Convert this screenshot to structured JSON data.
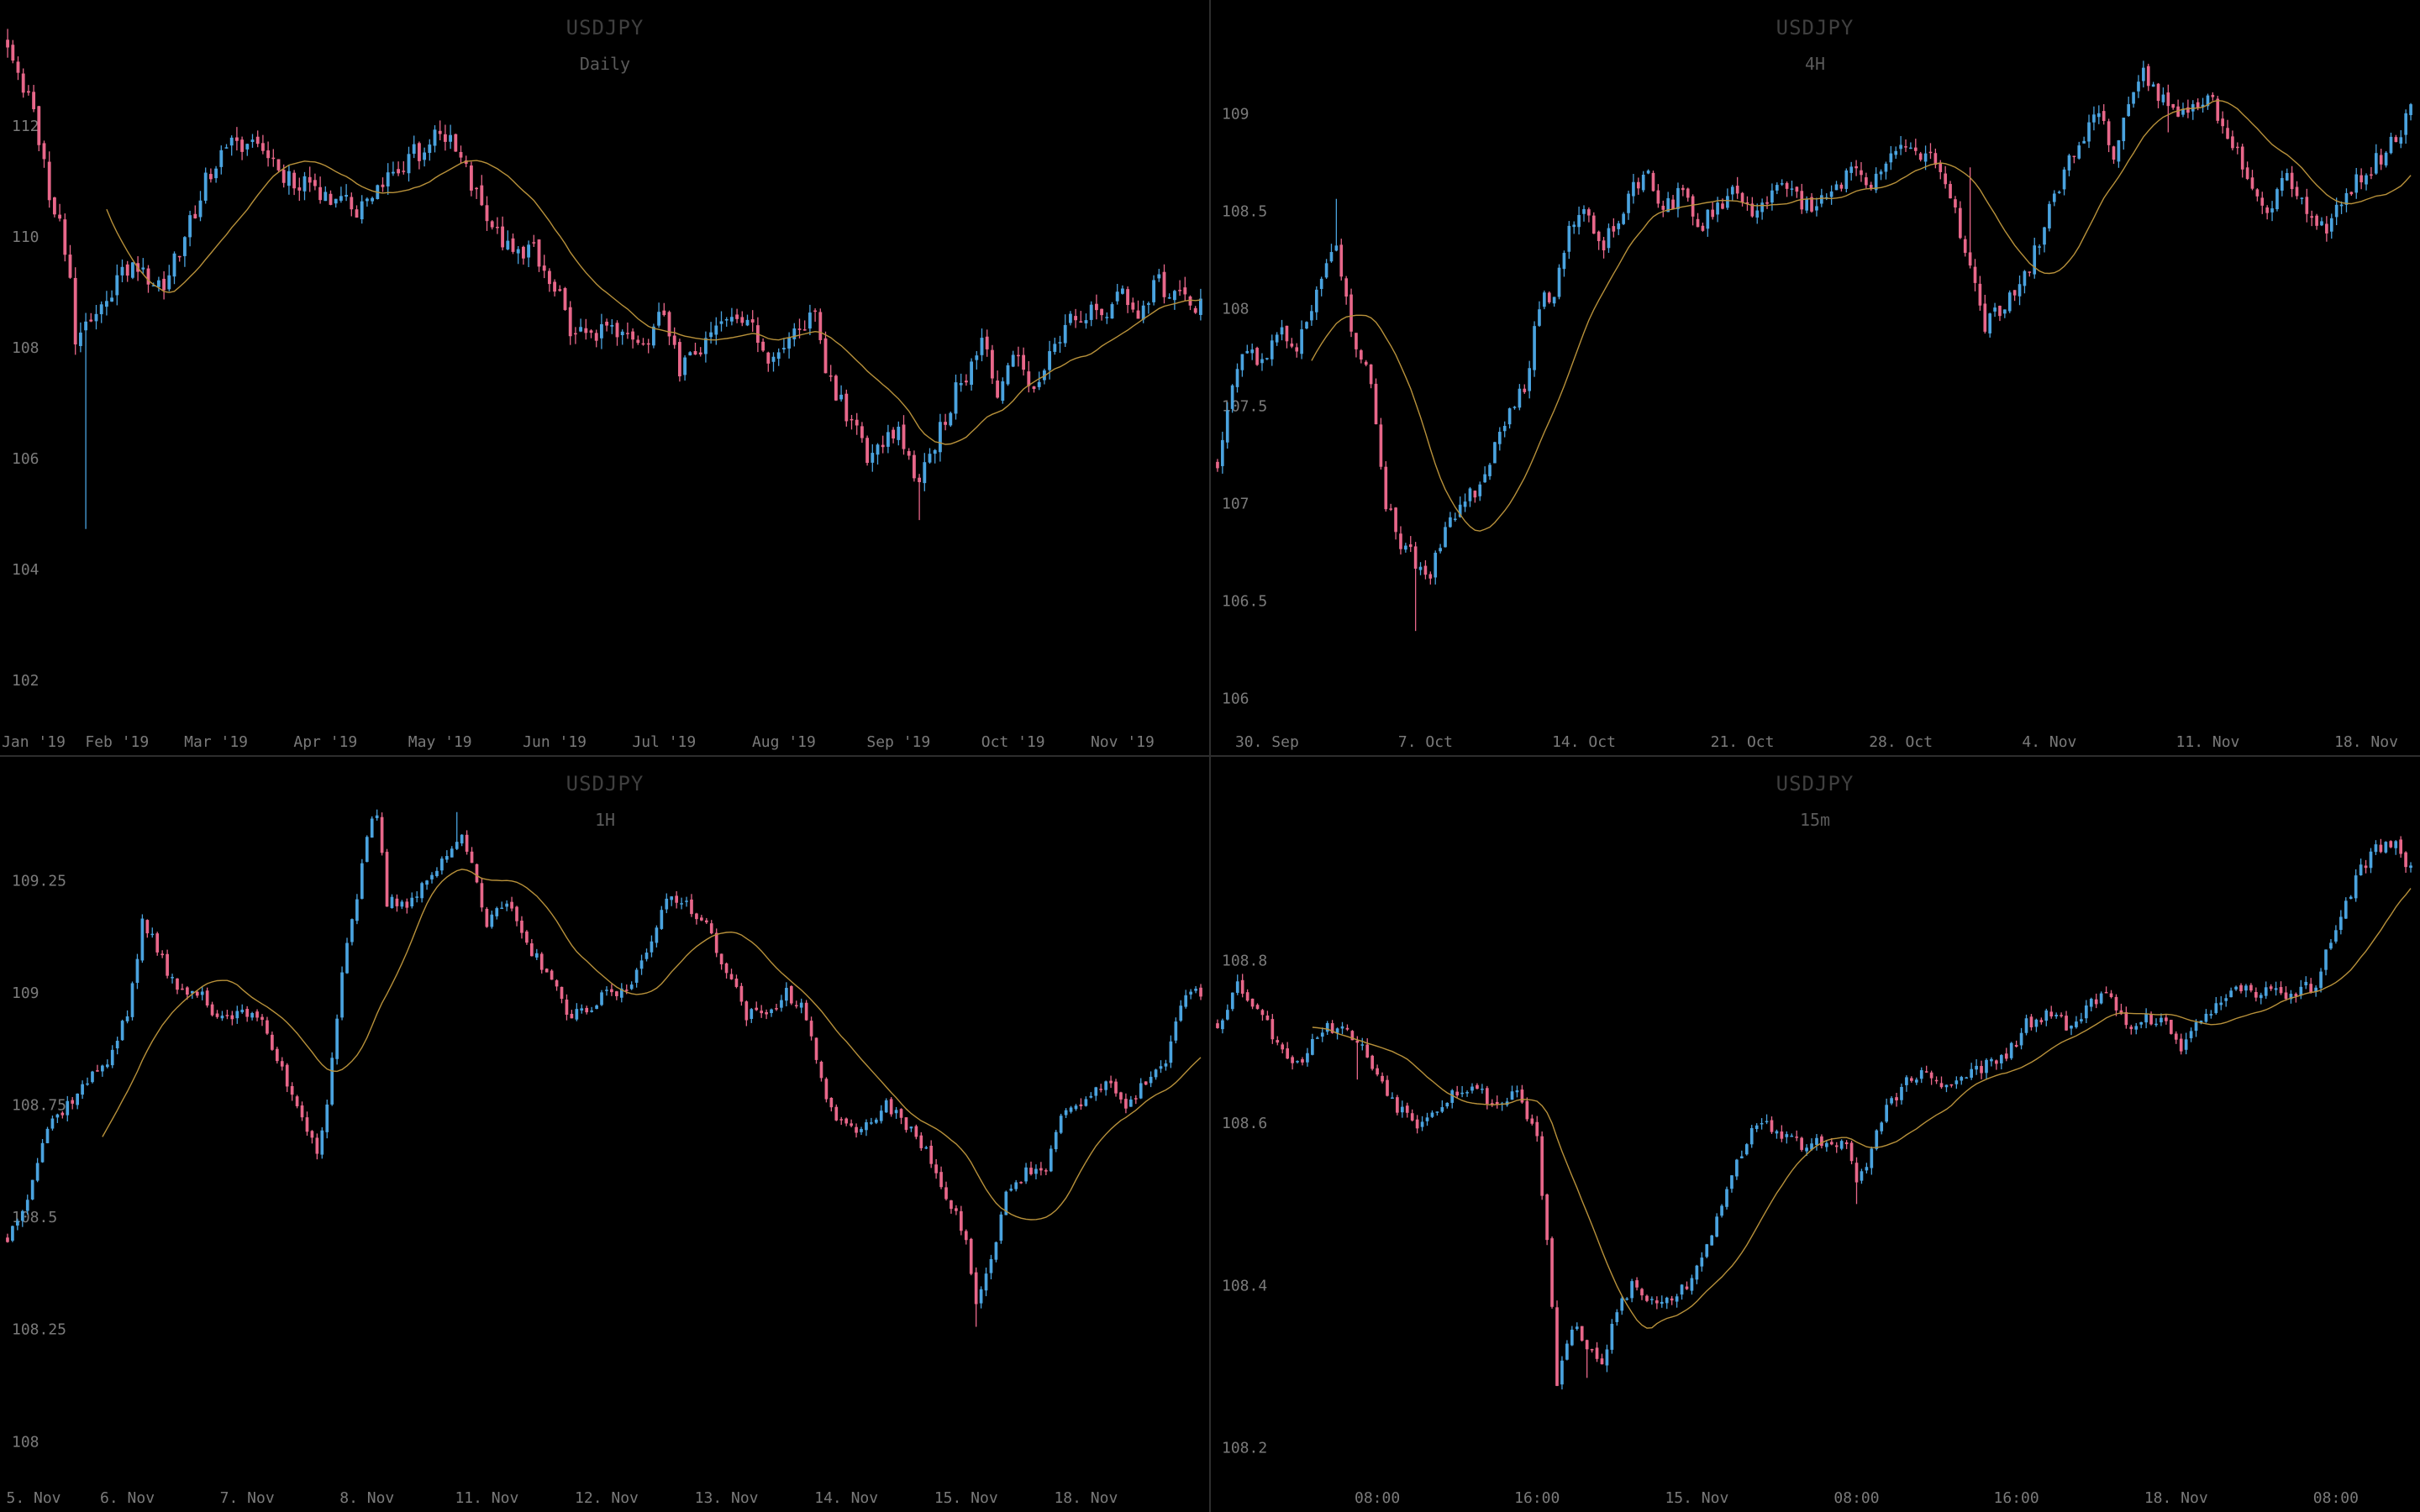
{
  "theme": {
    "background": "#000000",
    "up_color": "#4aa3df",
    "down_color": "#e8678a",
    "ma_color": "#b8913a",
    "text_color": "#7a7a7a",
    "title_color": "#3f3f3f"
  },
  "chart_data": [
    {
      "type": "candlestick",
      "title": "USDJPY",
      "subtitle": "Daily",
      "y_ticks": [
        "112",
        "110",
        "108",
        "106",
        "104",
        "102"
      ],
      "ylim": [
        101.5,
        113.8
      ],
      "x_ticks": [
        "Jan '19",
        "Feb '19",
        "Mar '19",
        "Apr '19",
        "May '19",
        "Jun '19",
        "Jul '19",
        "Aug '19",
        "Sep '19",
        "Oct '19",
        "Nov '19"
      ],
      "x_tick_index": [
        0,
        21,
        40,
        61,
        83,
        105,
        126,
        149,
        171,
        193,
        214
      ],
      "n_candles": 230,
      "ma_start_index": 19,
      "close_anchors": [
        [
          0,
          113.5
        ],
        [
          2,
          113.0
        ],
        [
          4,
          112.5
        ],
        [
          6,
          111.8
        ],
        [
          8,
          110.8
        ],
        [
          10,
          110.2
        ],
        [
          12,
          109.3
        ],
        [
          13,
          108.1
        ],
        [
          15,
          108.4
        ],
        [
          18,
          108.7
        ],
        [
          21,
          109.2
        ],
        [
          24,
          109.6
        ],
        [
          27,
          109.3
        ],
        [
          30,
          108.9
        ],
        [
          33,
          109.8
        ],
        [
          36,
          110.5
        ],
        [
          38,
          111.0
        ],
        [
          40,
          111.3
        ],
        [
          43,
          111.6
        ],
        [
          47,
          111.7
        ],
        [
          50,
          111.5
        ],
        [
          52,
          111.2
        ],
        [
          55,
          111.0
        ],
        [
          58,
          111.0
        ],
        [
          61,
          110.6
        ],
        [
          64,
          110.9
        ],
        [
          67,
          110.4
        ],
        [
          70,
          110.8
        ],
        [
          74,
          111.2
        ],
        [
          77,
          111.4
        ],
        [
          80,
          111.6
        ],
        [
          83,
          111.9
        ],
        [
          86,
          111.5
        ],
        [
          89,
          111.0
        ],
        [
          92,
          110.4
        ],
        [
          95,
          109.8
        ],
        [
          98,
          109.6
        ],
        [
          101,
          109.9
        ],
        [
          103,
          109.3
        ],
        [
          106,
          109.0
        ],
        [
          108,
          108.2
        ],
        [
          111,
          108.2
        ],
        [
          114,
          108.3
        ],
        [
          117,
          108.3
        ],
        [
          120,
          108.3
        ],
        [
          123,
          108.2
        ],
        [
          126,
          108.6
        ],
        [
          129,
          107.5
        ],
        [
          131,
          107.8
        ],
        [
          134,
          108.1
        ],
        [
          137,
          108.6
        ],
        [
          140,
          108.5
        ],
        [
          143,
          108.4
        ],
        [
          146,
          107.7
        ],
        [
          149,
          107.9
        ],
        [
          152,
          108.4
        ],
        [
          155,
          108.6
        ],
        [
          157,
          107.6
        ],
        [
          160,
          107.0
        ],
        [
          163,
          106.4
        ],
        [
          166,
          105.9
        ],
        [
          169,
          106.5
        ],
        [
          172,
          106.3
        ],
        [
          175,
          105.5
        ],
        [
          178,
          106.3
        ],
        [
          181,
          107.0
        ],
        [
          184,
          107.5
        ],
        [
          187,
          108.3
        ],
        [
          190,
          107.2
        ],
        [
          193,
          108.0
        ],
        [
          196,
          107.3
        ],
        [
          199,
          107.5
        ],
        [
          202,
          108.2
        ],
        [
          205,
          108.6
        ],
        [
          208,
          108.7
        ],
        [
          211,
          108.5
        ],
        [
          214,
          109.0
        ],
        [
          217,
          108.4
        ],
        [
          220,
          109.2
        ],
        [
          223,
          109.0
        ],
        [
          226,
          108.8
        ],
        [
          229,
          108.8
        ]
      ],
      "spikes": [
        [
          15,
          -3.5,
          0
        ],
        [
          175,
          -0.6,
          0
        ]
      ],
      "volatility": 0.28,
      "seed": 11
    },
    {
      "type": "candlestick",
      "title": "USDJPY",
      "subtitle": "4H",
      "y_ticks": [
        "109",
        "108.5",
        "108",
        "107.5",
        "107",
        "106.5",
        "106"
      ],
      "ylim": [
        105.95,
        109.45
      ],
      "x_ticks": [
        "30. Sep",
        "7. Oct",
        "14. Oct",
        "21. Oct",
        "28. Oct",
        "4. Nov",
        "11. Nov",
        "18. Nov"
      ],
      "x_tick_index": [
        10,
        42,
        74,
        106,
        138,
        168,
        200,
        232
      ],
      "n_candles": 242,
      "ma_start_index": 19,
      "close_anchors": [
        [
          0,
          107.2
        ],
        [
          3,
          107.6
        ],
        [
          6,
          107.8
        ],
        [
          9,
          107.7
        ],
        [
          12,
          107.9
        ],
        [
          16,
          107.8
        ],
        [
          20,
          108.1
        ],
        [
          24,
          108.3
        ],
        [
          27,
          107.9
        ],
        [
          31,
          107.6
        ],
        [
          34,
          107.0
        ],
        [
          37,
          106.8
        ],
        [
          40,
          106.7
        ],
        [
          43,
          106.6
        ],
        [
          46,
          106.9
        ],
        [
          50,
          107.0
        ],
        [
          53,
          107.1
        ],
        [
          56,
          107.3
        ],
        [
          59,
          107.5
        ],
        [
          62,
          107.6
        ],
        [
          65,
          108.0
        ],
        [
          68,
          108.1
        ],
        [
          71,
          108.4
        ],
        [
          74,
          108.5
        ],
        [
          77,
          108.3
        ],
        [
          80,
          108.4
        ],
        [
          84,
          108.6
        ],
        [
          87,
          108.7
        ],
        [
          90,
          108.5
        ],
        [
          94,
          108.6
        ],
        [
          97,
          108.4
        ],
        [
          100,
          108.5
        ],
        [
          104,
          108.6
        ],
        [
          108,
          108.5
        ],
        [
          112,
          108.6
        ],
        [
          116,
          108.6
        ],
        [
          120,
          108.5
        ],
        [
          124,
          108.6
        ],
        [
          128,
          108.7
        ],
        [
          132,
          108.6
        ],
        [
          136,
          108.8
        ],
        [
          140,
          108.8
        ],
        [
          144,
          108.8
        ],
        [
          148,
          108.6
        ],
        [
          152,
          108.2
        ],
        [
          155,
          107.9
        ],
        [
          158,
          108.0
        ],
        [
          161,
          108.1
        ],
        [
          164,
          108.2
        ],
        [
          168,
          108.5
        ],
        [
          171,
          108.7
        ],
        [
          175,
          108.9
        ],
        [
          178,
          109.0
        ],
        [
          181,
          108.8
        ],
        [
          184,
          109.0
        ],
        [
          187,
          109.2
        ],
        [
          190,
          109.1
        ],
        [
          193,
          109.0
        ],
        [
          196,
          109.0
        ],
        [
          200,
          109.1
        ],
        [
          204,
          108.9
        ],
        [
          208,
          108.7
        ],
        [
          212,
          108.5
        ],
        [
          216,
          108.7
        ],
        [
          220,
          108.5
        ],
        [
          224,
          108.4
        ],
        [
          228,
          108.6
        ],
        [
          232,
          108.7
        ],
        [
          236,
          108.8
        ],
        [
          241,
          109.0
        ]
      ],
      "spikes": [
        [
          24,
          0.2,
          0
        ],
        [
          40,
          -0.3,
          0
        ],
        [
          152,
          0.4,
          0
        ],
        [
          192,
          -0.1,
          0
        ]
      ],
      "volatility": 0.065,
      "seed": 23
    },
    {
      "type": "candlestick",
      "title": "USDJPY",
      "subtitle": "1H",
      "y_ticks": [
        "109.25",
        "109",
        "108.75",
        "108.5",
        "108.25",
        "108"
      ],
      "ylim": [
        107.95,
        109.47
      ],
      "x_ticks": [
        "5. Nov",
        "6. Nov",
        "7. Nov",
        "8. Nov",
        "11. Nov",
        "12. Nov",
        "13. Nov",
        "14. Nov",
        "15. Nov",
        "18. Nov"
      ],
      "x_tick_index": [
        0,
        24,
        48,
        72,
        96,
        120,
        144,
        168,
        192,
        216
      ],
      "n_candles": 240,
      "ma_start_index": 19,
      "close_anchors": [
        [
          0,
          108.45
        ],
        [
          4,
          108.55
        ],
        [
          8,
          108.7
        ],
        [
          12,
          108.75
        ],
        [
          16,
          108.8
        ],
        [
          20,
          108.85
        ],
        [
          24,
          108.95
        ],
        [
          27,
          109.15
        ],
        [
          30,
          109.1
        ],
        [
          34,
          109.0
        ],
        [
          38,
          109.0
        ],
        [
          42,
          108.95
        ],
        [
          46,
          108.95
        ],
        [
          50,
          108.95
        ],
        [
          54,
          108.85
        ],
        [
          58,
          108.75
        ],
        [
          62,
          108.65
        ],
        [
          64,
          108.75
        ],
        [
          67,
          109.05
        ],
        [
          70,
          109.2
        ],
        [
          72,
          109.35
        ],
        [
          74,
          109.4
        ],
        [
          76,
          109.2
        ],
        [
          80,
          109.2
        ],
        [
          84,
          109.25
        ],
        [
          88,
          109.3
        ],
        [
          91,
          109.35
        ],
        [
          93,
          109.3
        ],
        [
          96,
          109.15
        ],
        [
          100,
          109.2
        ],
        [
          104,
          109.1
        ],
        [
          108,
          109.05
        ],
        [
          112,
          108.95
        ],
        [
          116,
          108.95
        ],
        [
          120,
          109.0
        ],
        [
          124,
          109.0
        ],
        [
          128,
          109.1
        ],
        [
          132,
          109.2
        ],
        [
          136,
          109.2
        ],
        [
          140,
          109.15
        ],
        [
          144,
          109.05
        ],
        [
          148,
          108.95
        ],
        [
          152,
          108.95
        ],
        [
          156,
          109.0
        ],
        [
          160,
          108.95
        ],
        [
          164,
          108.75
        ],
        [
          168,
          108.7
        ],
        [
          172,
          108.7
        ],
        [
          176,
          108.75
        ],
        [
          180,
          108.7
        ],
        [
          184,
          108.65
        ],
        [
          188,
          108.55
        ],
        [
          192,
          108.45
        ],
        [
          194,
          108.3
        ],
        [
          197,
          108.4
        ],
        [
          200,
          108.55
        ],
        [
          204,
          108.6
        ],
        [
          208,
          108.6
        ],
        [
          212,
          108.75
        ],
        [
          216,
          108.75
        ],
        [
          220,
          108.8
        ],
        [
          224,
          108.75
        ],
        [
          228,
          108.8
        ],
        [
          232,
          108.85
        ],
        [
          236,
          109.0
        ],
        [
          239,
          109.0
        ]
      ],
      "spikes": [
        [
          90,
          0.06,
          0
        ],
        [
          194,
          -0.05,
          0
        ]
      ],
      "volatility": 0.02,
      "seed": 37
    },
    {
      "type": "candlestick",
      "title": "USDJPY",
      "subtitle": "15m",
      "y_ticks": [
        "108.8",
        "108.6",
        "108.4",
        "108.2"
      ],
      "ylim": [
        108.18,
        109.02
      ],
      "x_ticks": [
        "08:00",
        "16:00",
        "15. Nov",
        "08:00",
        "16:00",
        "18. Nov",
        "08:00"
      ],
      "x_tick_index": [
        32,
        64,
        96,
        128,
        160,
        192,
        224
      ],
      "n_candles": 240,
      "ma_start_index": 19,
      "close_anchors": [
        [
          0,
          108.72
        ],
        [
          4,
          108.77
        ],
        [
          8,
          108.74
        ],
        [
          12,
          108.7
        ],
        [
          16,
          108.67
        ],
        [
          20,
          108.71
        ],
        [
          24,
          108.72
        ],
        [
          28,
          108.7
        ],
        [
          32,
          108.66
        ],
        [
          36,
          108.62
        ],
        [
          40,
          108.6
        ],
        [
          44,
          108.62
        ],
        [
          48,
          108.64
        ],
        [
          52,
          108.64
        ],
        [
          56,
          108.62
        ],
        [
          60,
          108.64
        ],
        [
          64,
          108.58
        ],
        [
          66,
          108.45
        ],
        [
          68,
          108.28
        ],
        [
          71,
          108.35
        ],
        [
          74,
          108.32
        ],
        [
          77,
          108.3
        ],
        [
          80,
          108.37
        ],
        [
          83,
          108.4
        ],
        [
          86,
          108.38
        ],
        [
          90,
          108.38
        ],
        [
          94,
          108.4
        ],
        [
          98,
          108.45
        ],
        [
          102,
          108.52
        ],
        [
          106,
          108.58
        ],
        [
          110,
          108.6
        ],
        [
          114,
          108.58
        ],
        [
          118,
          108.57
        ],
        [
          122,
          108.58
        ],
        [
          126,
          108.57
        ],
        [
          128,
          108.52
        ],
        [
          130,
          108.55
        ],
        [
          134,
          108.62
        ],
        [
          138,
          108.65
        ],
        [
          142,
          108.66
        ],
        [
          146,
          108.64
        ],
        [
          150,
          108.66
        ],
        [
          154,
          108.67
        ],
        [
          158,
          108.68
        ],
        [
          162,
          108.72
        ],
        [
          166,
          108.73
        ],
        [
          170,
          108.72
        ],
        [
          174,
          108.74
        ],
        [
          178,
          108.76
        ],
        [
          182,
          108.72
        ],
        [
          186,
          108.73
        ],
        [
          190,
          108.72
        ],
        [
          193,
          108.68
        ],
        [
          196,
          108.73
        ],
        [
          200,
          108.74
        ],
        [
          204,
          108.76
        ],
        [
          208,
          108.76
        ],
        [
          212,
          108.76
        ],
        [
          216,
          108.76
        ],
        [
          220,
          108.77
        ],
        [
          224,
          108.84
        ],
        [
          228,
          108.9
        ],
        [
          232,
          108.94
        ],
        [
          236,
          108.94
        ],
        [
          239,
          108.91
        ]
      ],
      "spikes": [
        [
          28,
          -0.04,
          0
        ],
        [
          74,
          -0.03,
          0
        ],
        [
          128,
          -0.02,
          0
        ]
      ],
      "volatility": 0.012,
      "seed": 53
    }
  ]
}
